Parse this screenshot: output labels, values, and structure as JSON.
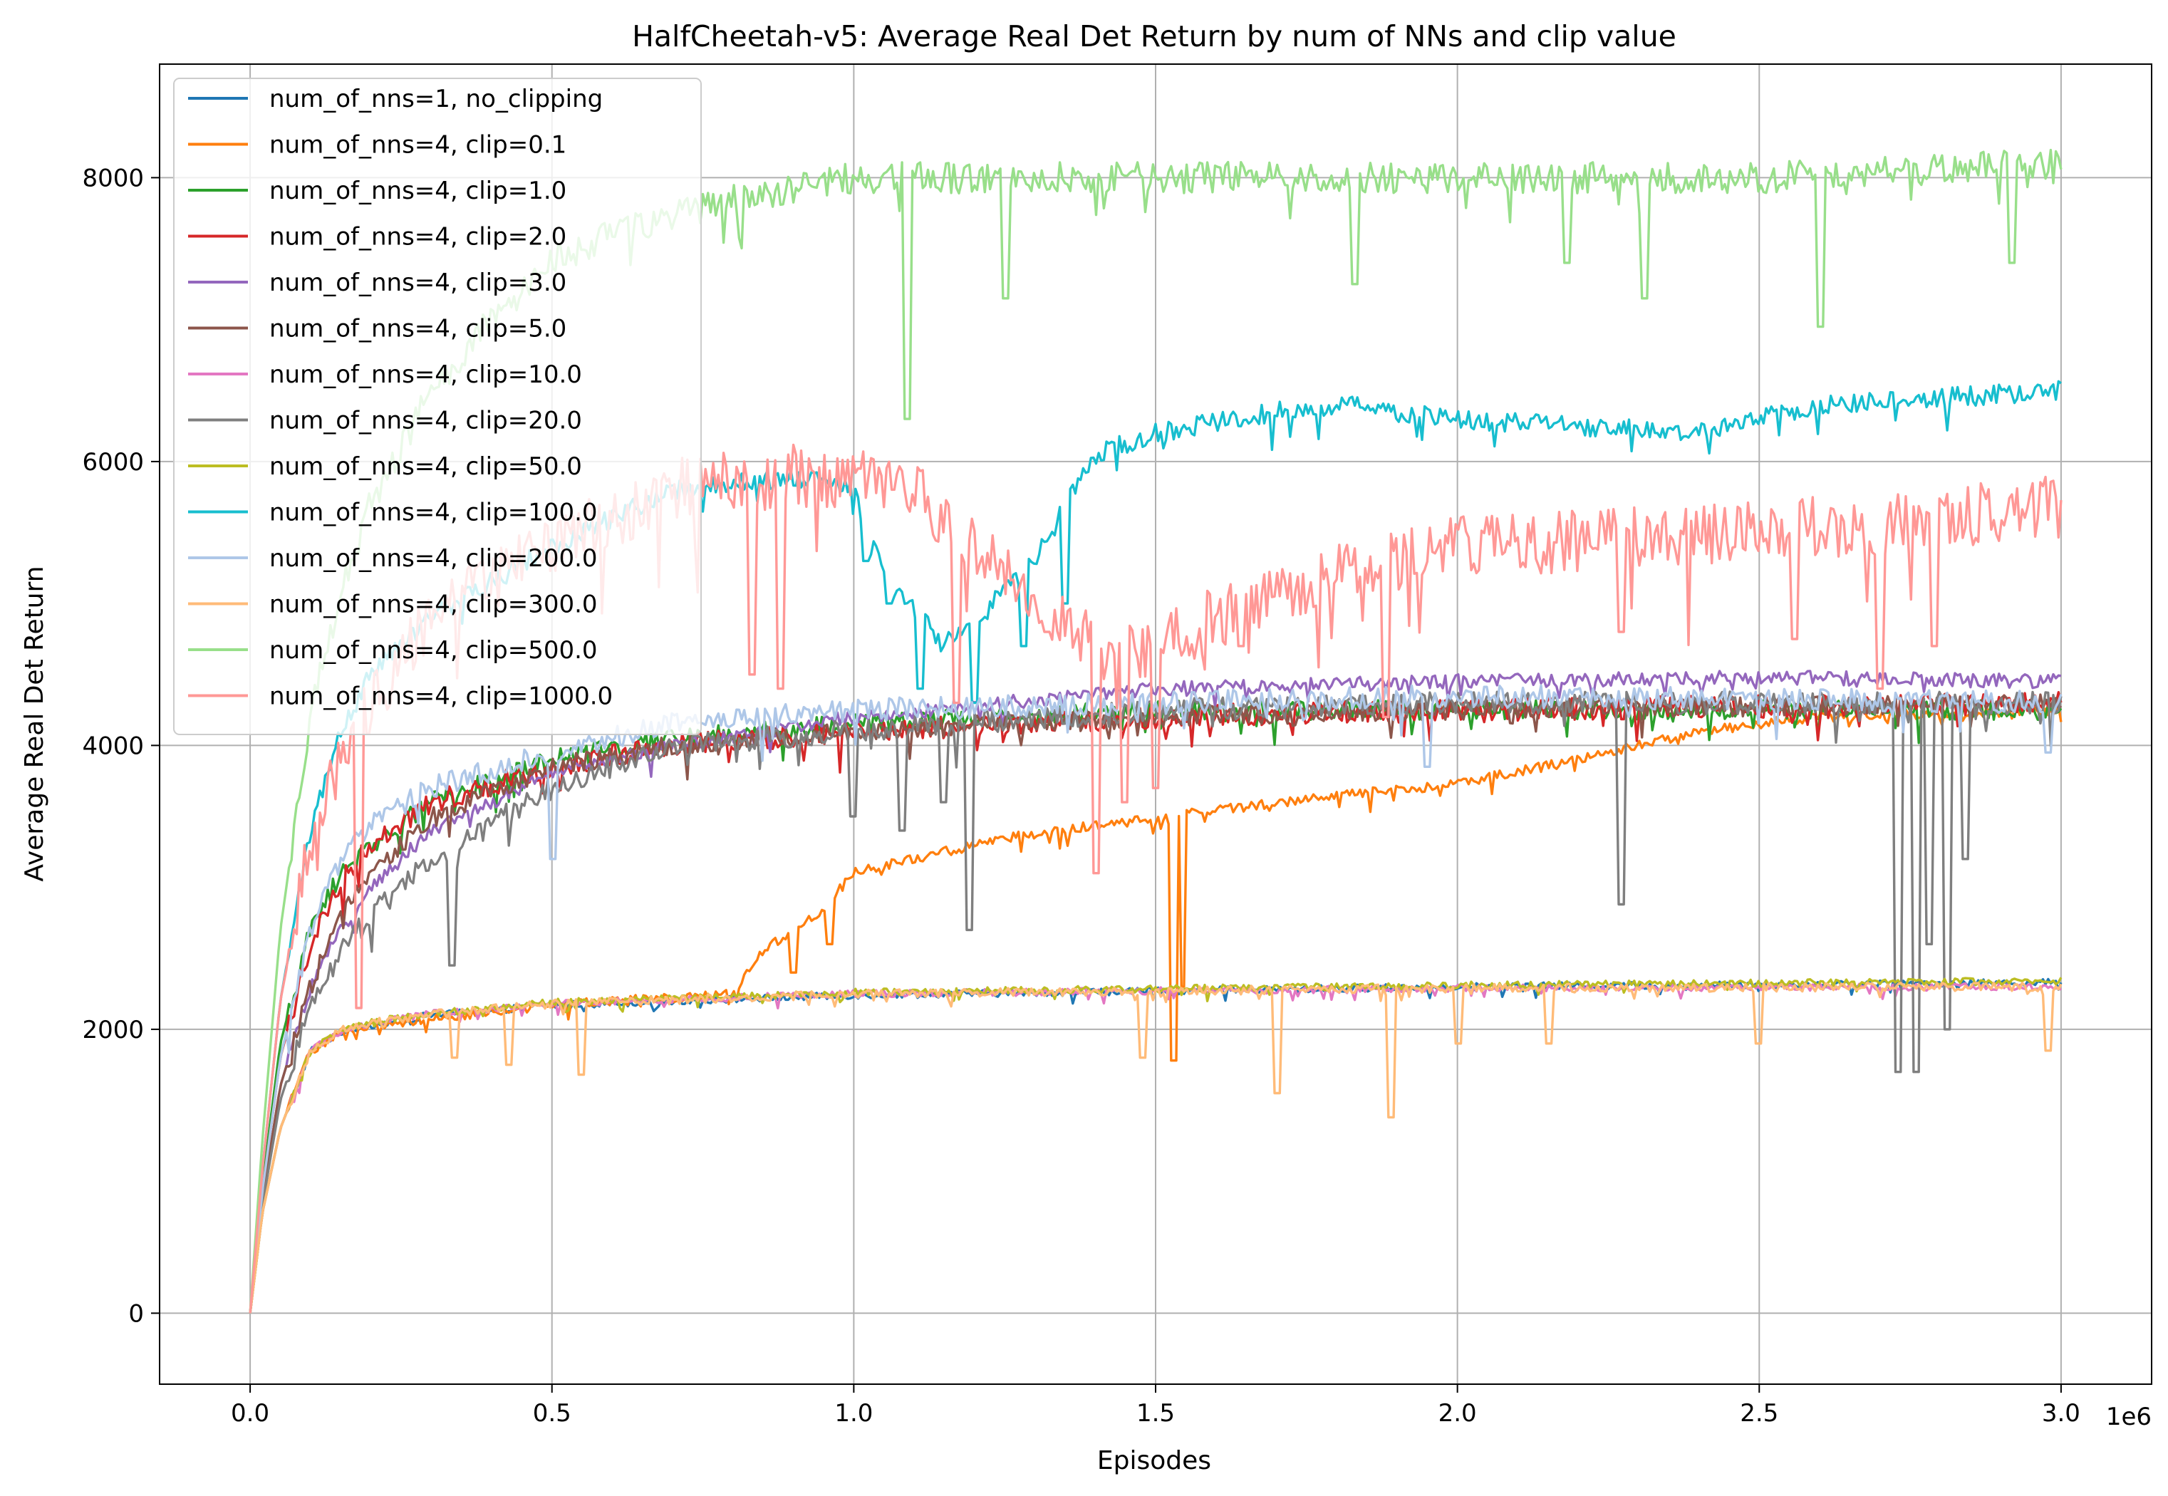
{
  "chart_data": {
    "type": "line",
    "title": "HalfCheetah-v5: Average Real Det Return by num of NNs and clip value",
    "xlabel": "Episodes",
    "ylabel": "Average Real Det Return",
    "x_offset_label": "1e6",
    "xlim": [
      -150000,
      3150000
    ],
    "ylim": [
      -500,
      8800
    ],
    "xticks": [
      0,
      500000,
      1000000,
      1500000,
      2000000,
      2500000,
      3000000
    ],
    "xtick_labels": [
      "0.0",
      "0.5",
      "1.0",
      "1.5",
      "2.0",
      "2.5",
      "3.0"
    ],
    "yticks": [
      0,
      2000,
      4000,
      6000,
      8000
    ],
    "ytick_labels": [
      "0",
      "2000",
      "4000",
      "6000",
      "8000"
    ],
    "grid": true,
    "legend_position": "top-left",
    "series": [
      {
        "name": "num_of_nns=1, no_clipping",
        "color": "#1f77b4",
        "noise": 25,
        "dips": [],
        "x": [
          0,
          20000,
          50000,
          100000,
          150000,
          200000,
          300000,
          500000,
          1000000,
          2000000,
          3000000
        ],
        "y": [
          0,
          700,
          1300,
          1850,
          1980,
          2030,
          2100,
          2170,
          2240,
          2300,
          2330
        ]
      },
      {
        "name": "num_of_nns=4, clip=0.1",
        "color": "#ff7f0e",
        "noise": 35,
        "dips": [
          [
            900000,
            2400
          ],
          [
            960000,
            2600
          ],
          [
            1530000,
            1780
          ],
          [
            1545000,
            2300
          ]
        ],
        "x": [
          0,
          20000,
          50000,
          100000,
          150000,
          200000,
          500000,
          800000,
          850000,
          950000,
          1000000,
          1100000,
          1200000,
          1300000,
          1450000,
          1520000,
          1560000,
          1700000,
          2000000,
          2200000,
          2400000,
          2600000,
          3000000
        ],
        "y": [
          0,
          700,
          1300,
          1850,
          1980,
          2030,
          2170,
          2250,
          2550,
          2850,
          3100,
          3200,
          3300,
          3380,
          3460,
          3480,
          3520,
          3600,
          3730,
          3900,
          4100,
          4200,
          4250
        ]
      },
      {
        "name": "num_of_nns=4, clip=1.0",
        "color": "#2ca02c",
        "noise": 70,
        "dips": [],
        "x": [
          0,
          20000,
          50000,
          100000,
          150000,
          200000,
          300000,
          500000,
          700000,
          1000000,
          1500000,
          2000000,
          3000000
        ],
        "y": [
          0,
          900,
          1900,
          2700,
          3100,
          3300,
          3600,
          3900,
          4050,
          4150,
          4250,
          4250,
          4250
        ]
      },
      {
        "name": "num_of_nns=4, clip=2.0",
        "color": "#d62728",
        "noise": 80,
        "dips": [],
        "x": [
          0,
          20000,
          50000,
          100000,
          150000,
          200000,
          300000,
          500000,
          700000,
          1000000,
          1500000,
          2000000,
          3000000
        ],
        "y": [
          0,
          850,
          1800,
          2600,
          3050,
          3300,
          3600,
          3850,
          4000,
          4100,
          4200,
          4250,
          4300
        ]
      },
      {
        "name": "num_of_nns=4, clip=3.0",
        "color": "#9467bd",
        "noise": 50,
        "dips": [],
        "x": [
          0,
          20000,
          50000,
          100000,
          150000,
          200000,
          300000,
          500000,
          700000,
          1000000,
          1500000,
          2000000,
          2500000,
          3000000
        ],
        "y": [
          0,
          800,
          1600,
          2300,
          2700,
          3000,
          3400,
          3800,
          4000,
          4200,
          4400,
          4450,
          4480,
          4450
        ]
      },
      {
        "name": "num_of_nns=4, clip=5.0",
        "color": "#8c564b",
        "noise": 70,
        "dips": [],
        "x": [
          0,
          20000,
          50000,
          100000,
          150000,
          200000,
          300000,
          500000,
          700000,
          1000000,
          1500000,
          2000000,
          3000000
        ],
        "y": [
          0,
          800,
          1600,
          2300,
          2800,
          3100,
          3500,
          3850,
          4000,
          4100,
          4200,
          4250,
          4300
        ]
      },
      {
        "name": "num_of_nns=4, clip=10.0",
        "color": "#e377c2",
        "noise": 25,
        "dips": [],
        "x": [
          0,
          20000,
          50000,
          100000,
          150000,
          200000,
          300000,
          500000,
          1000000,
          2000000,
          3000000
        ],
        "y": [
          0,
          700,
          1300,
          1850,
          1980,
          2040,
          2110,
          2180,
          2250,
          2290,
          2300
        ]
      },
      {
        "name": "num_of_nns=4, clip=20.0",
        "color": "#7f7f7f",
        "noise": 80,
        "dips": [
          [
            335000,
            2450
          ],
          [
            1000000,
            3500
          ],
          [
            1080000,
            3400
          ],
          [
            1150000,
            3600
          ],
          [
            1190000,
            2700
          ],
          [
            2270000,
            2880
          ],
          [
            2730000,
            1700
          ],
          [
            2760000,
            1700
          ],
          [
            2780000,
            2600
          ],
          [
            2810000,
            2000
          ],
          [
            2840000,
            3200
          ]
        ],
        "x": [
          0,
          20000,
          50000,
          100000,
          150000,
          200000,
          300000,
          500000,
          700000,
          1000000,
          1500000,
          2000000,
          3000000
        ],
        "y": [
          0,
          750,
          1500,
          2150,
          2550,
          2800,
          3200,
          3700,
          4000,
          4100,
          4250,
          4300,
          4300
        ]
      },
      {
        "name": "num_of_nns=4, clip=50.0",
        "color": "#bcbd22",
        "noise": 25,
        "dips": [],
        "x": [
          0,
          20000,
          50000,
          100000,
          150000,
          200000,
          300000,
          500000,
          1000000,
          2000000,
          3000000
        ],
        "y": [
          0,
          700,
          1300,
          1850,
          1990,
          2050,
          2110,
          2190,
          2260,
          2310,
          2340
        ]
      },
      {
        "name": "num_of_nns=4, clip=100.0",
        "color": "#17becf",
        "noise": 70,
        "dips": [
          [
            1020000,
            5300
          ],
          [
            1060000,
            5000
          ],
          [
            1110000,
            4400
          ],
          [
            1200000,
            4300
          ],
          [
            1280000,
            4700
          ],
          [
            1350000,
            5000
          ]
        ],
        "x": [
          0,
          20000,
          50000,
          100000,
          150000,
          200000,
          300000,
          500000,
          700000,
          900000,
          1000000,
          1050000,
          1150000,
          1300000,
          1400000,
          1500000,
          1700000,
          1800000,
          2000000,
          2200000,
          2400000,
          2600000,
          2800000,
          3000000
        ],
        "y": [
          0,
          1000,
          2200,
          3400,
          4100,
          4500,
          4900,
          5400,
          5800,
          5900,
          5800,
          5200,
          4700,
          5300,
          6050,
          6200,
          6350,
          6400,
          6300,
          6250,
          6200,
          6400,
          6450,
          6500
        ]
      },
      {
        "name": "num_of_nns=4, clip=200.0",
        "color": "#aec7e8",
        "noise": 80,
        "dips": [
          [
            500000,
            3200
          ],
          [
            1950000,
            3850
          ],
          [
            2980000,
            3950
          ]
        ],
        "x": [
          0,
          20000,
          50000,
          100000,
          150000,
          200000,
          300000,
          500000,
          700000,
          1000000,
          1500000,
          2000000,
          3000000
        ],
        "y": [
          0,
          850,
          1800,
          2700,
          3200,
          3450,
          3700,
          3950,
          4150,
          4250,
          4300,
          4350,
          4300
        ]
      },
      {
        "name": "num_of_nns=4, clip=300.0",
        "color": "#ffbb78",
        "noise": 30,
        "dips": [
          [
            340000,
            1800
          ],
          [
            430000,
            1750
          ],
          [
            550000,
            1680
          ],
          [
            1480000,
            1800
          ],
          [
            1700000,
            1550
          ],
          [
            1890000,
            1380
          ],
          [
            2000000,
            1900
          ],
          [
            2150000,
            1900
          ],
          [
            2500000,
            1900
          ],
          [
            2980000,
            1850
          ]
        ],
        "x": [
          0,
          20000,
          50000,
          100000,
          150000,
          200000,
          300000,
          500000,
          1000000,
          2000000,
          3000000
        ],
        "y": [
          0,
          700,
          1300,
          1850,
          1990,
          2040,
          2110,
          2180,
          2250,
          2290,
          2300
        ]
      },
      {
        "name": "num_of_nns=4, clip=500.0",
        "color": "#98df8a",
        "noise": 110,
        "dips": [
          [
            1090000,
            6300
          ],
          [
            1250000,
            7150
          ],
          [
            1830000,
            7250
          ],
          [
            2180000,
            7400
          ],
          [
            2310000,
            7150
          ],
          [
            2600000,
            6950
          ],
          [
            2920000,
            7400
          ]
        ],
        "x": [
          0,
          20000,
          50000,
          100000,
          150000,
          200000,
          300000,
          400000,
          500000,
          600000,
          800000,
          1000000,
          1500000,
          2000000,
          2500000,
          3000000
        ],
        "y": [
          0,
          1200,
          2700,
          4200,
          5100,
          5700,
          6500,
          7000,
          7400,
          7600,
          7850,
          8000,
          8000,
          8000,
          8000,
          8100
        ]
      },
      {
        "name": "num_of_nns=4, clip=1000.0",
        "color": "#ff9896",
        "noise": 220,
        "dips": [
          [
            180000,
            2150
          ],
          [
            830000,
            4500
          ],
          [
            880000,
            4400
          ],
          [
            1170000,
            4300
          ],
          [
            1320000,
            4800
          ],
          [
            1400000,
            3100
          ],
          [
            1450000,
            3600
          ],
          [
            1500000,
            3700
          ],
          [
            1640000,
            4700
          ],
          [
            1880000,
            4200
          ],
          [
            2270000,
            4800
          ],
          [
            2560000,
            4750
          ],
          [
            2700000,
            4400
          ],
          [
            2790000,
            4700
          ]
        ],
        "x": [
          0,
          20000,
          50000,
          100000,
          150000,
          200000,
          300000,
          500000,
          700000,
          900000,
          1000000,
          1100000,
          1200000,
          1300000,
          1400000,
          1500000,
          1700000,
          2000000,
          2500000,
          2800000,
          3000000
        ],
        "y": [
          0,
          1000,
          2200,
          3300,
          3900,
          4300,
          4900,
          5400,
          5800,
          5900,
          5900,
          5800,
          5400,
          5000,
          4700,
          4700,
          5100,
          5400,
          5500,
          5600,
          5700
        ]
      }
    ]
  }
}
